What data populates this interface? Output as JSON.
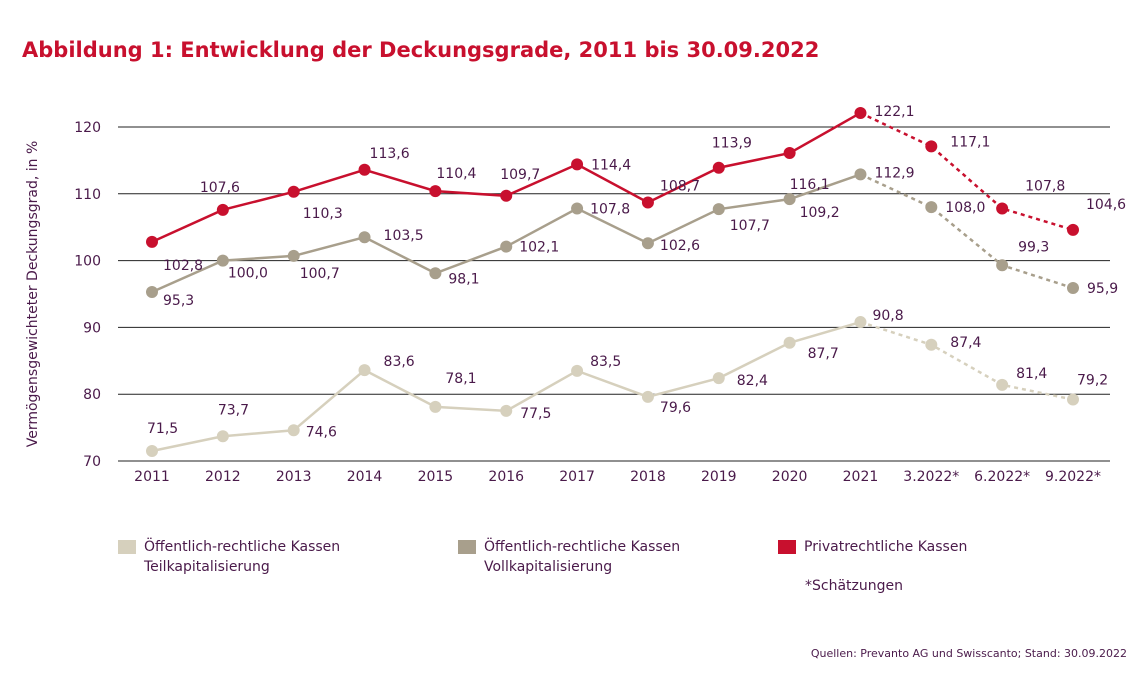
{
  "chart_data": {
    "type": "line",
    "title": "Abbildung 1: Entwicklung der Deckungsgrade, 2011 bis 30.09.2022",
    "ylabel": "Vermögensgewichteter Deckungsgrad, in %",
    "xlabel": "",
    "ylim": [
      70,
      120
    ],
    "yticks": [
      "70",
      "80",
      "90",
      "100",
      "110",
      "120"
    ],
    "categories": [
      "2011",
      "2012",
      "2013",
      "2014",
      "2015",
      "2016",
      "2017",
      "2018",
      "2019",
      "2020",
      "2021",
      "3.2022*",
      "6.2022*",
      "9.2022*"
    ],
    "estimated_from_index": 10,
    "grid": true,
    "legend_position": "bottom",
    "series": [
      {
        "name": "Privatrechtliche Kassen",
        "legend": [
          "Privatrechtliche Kassen"
        ],
        "color": "#c8102e",
        "values": [
          102.8,
          107.6,
          110.3,
          113.6,
          110.4,
          109.7,
          114.4,
          108.7,
          113.9,
          116.1,
          122.1,
          117.1,
          107.8,
          104.6
        ],
        "labels": [
          "102,8",
          "107,6",
          "110,3",
          "113,6",
          "110,4",
          "109,7",
          "114,4",
          "108,7",
          "113,9",
          "116,1",
          "122,1",
          "117,1",
          "107,8",
          "104,6"
        ]
      },
      {
        "name": "Öffentlich-rechtliche Kassen Vollkapitalisierung",
        "legend": [
          "Öffentlich-rechtliche Kassen",
          "Vollkapitalisierung"
        ],
        "color": "#a89f8c",
        "values": [
          95.3,
          100.0,
          100.7,
          103.5,
          98.1,
          102.1,
          107.8,
          102.6,
          107.7,
          109.2,
          112.9,
          108.0,
          99.3,
          95.9
        ],
        "labels": [
          "95,3",
          "100,0",
          "100,7",
          "103,5",
          "98,1",
          "102,1",
          "107,8",
          "102,6",
          "107,7",
          "109,2",
          "112,9",
          "108,0",
          "99,3",
          "95,9"
        ]
      },
      {
        "name": "Öffentlich-rechtliche Kassen Teilkapitalisierung",
        "legend": [
          "Öffentlich-rechtliche Kassen",
          "Teilkapitalisierung"
        ],
        "color": "#d6d0bd",
        "values": [
          71.5,
          73.7,
          74.6,
          83.6,
          78.1,
          77.5,
          83.5,
          79.6,
          82.4,
          87.7,
          90.8,
          87.4,
          81.4,
          79.2
        ],
        "labels": [
          "71,5",
          "73,7",
          "74,6",
          "83,6",
          "78,1",
          "77,5",
          "83,5",
          "79,6",
          "82,4",
          "87,7",
          "90,8",
          "87,4",
          "81,4",
          "79,2"
        ]
      }
    ],
    "note": "*Schätzungen",
    "source": "Quellen: Prevanto AG und Swisscanto; Stand: 30.09.2022"
  }
}
